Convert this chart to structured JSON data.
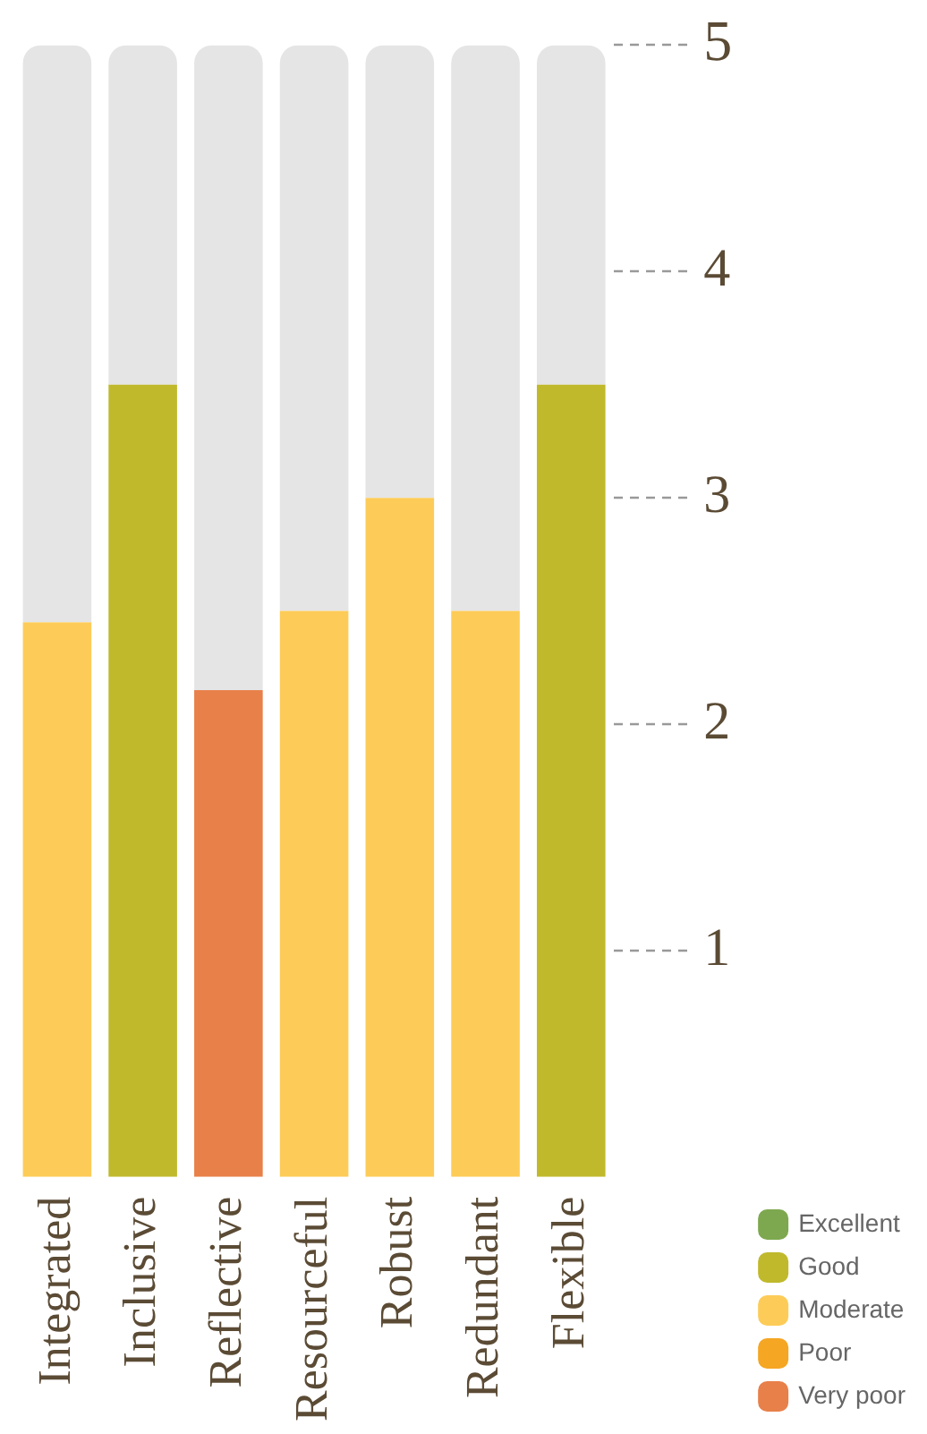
{
  "chart_data": {
    "type": "bar",
    "stacked": true,
    "categories": [
      "Integrated",
      "Inclusive",
      "Reflective",
      "Resourceful",
      "Robust",
      "Redundant",
      "Flexible"
    ],
    "series": [
      {
        "name": "Excellent",
        "color": "#7ea84f",
        "values": [
          null,
          null,
          null,
          null,
          null,
          null,
          null
        ]
      },
      {
        "name": "Good",
        "color": "#c0b92c",
        "values": [
          null,
          3.5,
          null,
          null,
          null,
          null,
          3.5
        ]
      },
      {
        "name": "Moderate",
        "color": "#fdcc58",
        "values": [
          2.45,
          null,
          null,
          2.5,
          3.0,
          2.5,
          null
        ]
      },
      {
        "name": "Poor",
        "color": "#f5a623",
        "values": [
          null,
          null,
          null,
          null,
          null,
          null,
          null
        ]
      },
      {
        "name": "Very poor",
        "color": "#e8804a",
        "values": [
          null,
          null,
          2.15,
          null,
          null,
          null,
          null
        ]
      },
      {
        "color": "#e5e5e5",
        "values": [
          2.55,
          1.5,
          2.85,
          2.5,
          2.0,
          2.5,
          1.5
        ]
      }
    ],
    "ylim": [
      0,
      5
    ],
    "yticks": [
      1,
      2,
      3,
      4,
      5
    ],
    "legend": "bottom right"
  }
}
